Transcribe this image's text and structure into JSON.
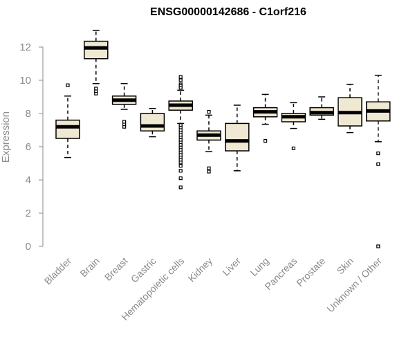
{
  "chart_data": {
    "type": "box",
    "title": "ENSG00000142686 - C1orf216",
    "xlabel": "",
    "ylabel": "Expression",
    "ylim": [
      0,
      12
    ],
    "yticks": [
      0,
      2,
      4,
      6,
      8,
      10,
      12
    ],
    "box_fill": "#efe8d2",
    "categories": [
      "Bladder",
      "Brain",
      "Breast",
      "Gastric",
      "Hematopoietic cells",
      "Kidney",
      "Liver",
      "Lung",
      "Pancreas",
      "Prostate",
      "Skin",
      "Unknown / Other"
    ],
    "boxes": [
      {
        "category": "Bladder",
        "whisker_low": 5.35,
        "q1": 6.5,
        "median": 7.2,
        "q3": 7.6,
        "whisker_high": 9.05,
        "outliers": [
          9.7
        ]
      },
      {
        "category": "Brain",
        "whisker_low": 9.8,
        "q1": 11.3,
        "median": 11.95,
        "q3": 12.35,
        "whisker_high": 13.0,
        "outliers": [
          9.2,
          9.35,
          9.5
        ]
      },
      {
        "category": "Breast",
        "whisker_low": 8.25,
        "q1": 8.55,
        "median": 8.8,
        "q3": 9.05,
        "whisker_high": 9.8,
        "outliers": [
          7.2,
          7.35,
          7.5
        ]
      },
      {
        "category": "Gastric",
        "whisker_low": 6.6,
        "q1": 6.95,
        "median": 7.25,
        "q3": 8.0,
        "whisker_high": 8.3,
        "outliers": []
      },
      {
        "category": "Hematopoietic cells",
        "whisker_low": 7.4,
        "q1": 8.2,
        "median": 8.5,
        "q3": 8.75,
        "whisker_high": 9.4,
        "outliers": [
          10.2,
          10.0,
          9.75,
          9.65,
          9.55,
          7.3,
          7.15,
          7.0,
          6.85,
          6.7,
          6.55,
          6.4,
          6.25,
          6.1,
          5.95,
          5.8,
          5.65,
          5.5,
          5.35,
          5.2,
          5.05,
          4.85,
          4.55,
          4.1,
          3.55
        ]
      },
      {
        "category": "Kidney",
        "whisker_low": 5.7,
        "q1": 6.4,
        "median": 6.7,
        "q3": 6.95,
        "whisker_high": 7.9,
        "outliers": [
          8.1,
          4.5,
          4.7
        ]
      },
      {
        "category": "Liver",
        "whisker_low": 4.55,
        "q1": 5.75,
        "median": 6.35,
        "q3": 7.4,
        "whisker_high": 8.5,
        "outliers": []
      },
      {
        "category": "Lung",
        "whisker_low": 7.35,
        "q1": 7.8,
        "median": 8.1,
        "q3": 8.35,
        "whisker_high": 9.15,
        "outliers": [
          6.35
        ]
      },
      {
        "category": "Pancreas",
        "whisker_low": 7.1,
        "q1": 7.5,
        "median": 7.8,
        "q3": 8.0,
        "whisker_high": 8.65,
        "outliers": [
          5.9
        ]
      },
      {
        "category": "Prostate",
        "whisker_low": 7.65,
        "q1": 7.9,
        "median": 8.05,
        "q3": 8.35,
        "whisker_high": 9.0,
        "outliers": []
      },
      {
        "category": "Skin",
        "whisker_low": 6.85,
        "q1": 7.25,
        "median": 8.05,
        "q3": 8.95,
        "whisker_high": 9.75,
        "outliers": []
      },
      {
        "category": "Unknown / Other",
        "whisker_low": 6.3,
        "q1": 7.55,
        "median": 8.15,
        "q3": 8.7,
        "whisker_high": 10.3,
        "outliers": [
          5.6,
          4.95,
          0.0
        ]
      }
    ]
  }
}
